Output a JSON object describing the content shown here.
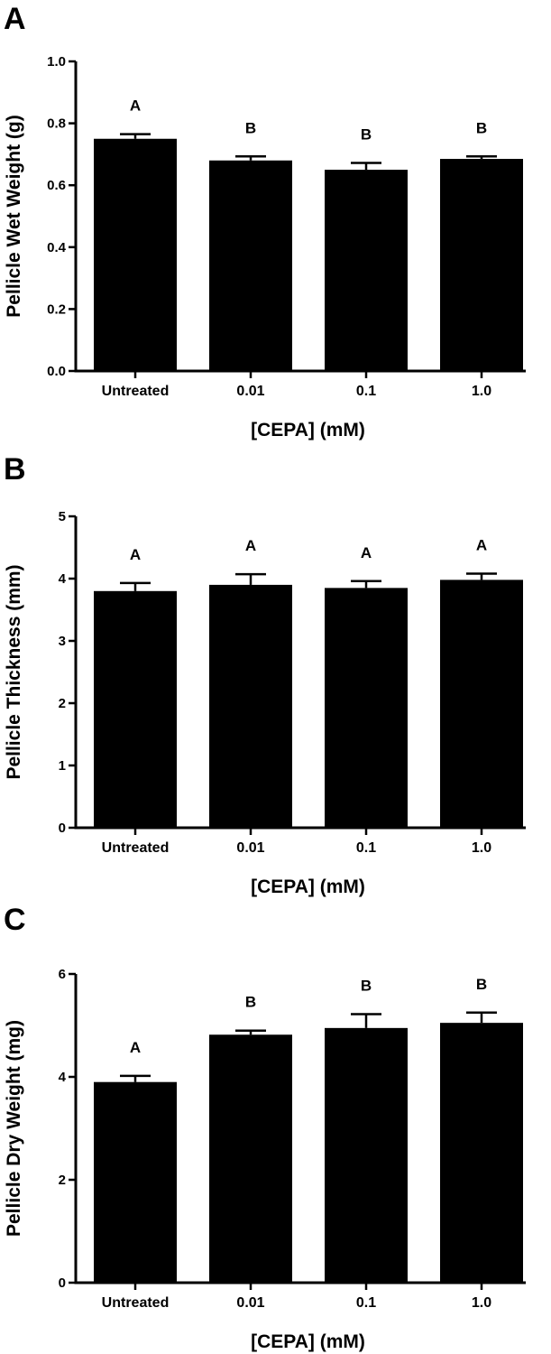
{
  "chart_data": [
    {
      "type": "bar",
      "panel": "A",
      "categories": [
        "Untreated",
        "0.01",
        "0.1",
        "1.0"
      ],
      "values": [
        0.75,
        0.68,
        0.65,
        0.685
      ],
      "errors": [
        0.015,
        0.013,
        0.022,
        0.008
      ],
      "significance": [
        "A",
        "B",
        "B",
        "B"
      ],
      "xlabel": "[CEPA] (mM)",
      "ylabel": "Pellicle Wet Weight (g)",
      "ylim": [
        0,
        1.0
      ],
      "yticks": [
        "0.0",
        "0.2",
        "0.4",
        "0.6",
        "0.8",
        "1.0"
      ],
      "bar_color": "#000000",
      "grid": false
    },
    {
      "type": "bar",
      "panel": "B",
      "categories": [
        "Untreated",
        "0.01",
        "0.1",
        "1.0"
      ],
      "values": [
        3.8,
        3.9,
        3.85,
        3.98
      ],
      "errors": [
        0.13,
        0.17,
        0.11,
        0.1
      ],
      "significance": [
        "A",
        "A",
        "A",
        "A"
      ],
      "xlabel": "[CEPA] (mM)",
      "ylabel": "Pellicle Thickness (mm)",
      "ylim": [
        0,
        5
      ],
      "yticks": [
        "0",
        "1",
        "2",
        "3",
        "4",
        "5"
      ],
      "bar_color": "#000000",
      "grid": false
    },
    {
      "type": "bar",
      "panel": "C",
      "categories": [
        "Untreated",
        "0.01",
        "0.1",
        "1.0"
      ],
      "values": [
        3.9,
        4.82,
        4.95,
        5.05
      ],
      "errors": [
        0.12,
        0.08,
        0.27,
        0.2
      ],
      "significance": [
        "A",
        "B",
        "B",
        "B"
      ],
      "xlabel": "[CEPA] (mM)",
      "ylabel": "Pellicle Dry Weight (mg)",
      "ylim": [
        0,
        6
      ],
      "yticks": [
        "0",
        "2",
        "4",
        "6"
      ],
      "bar_color": "#000000",
      "grid": false
    }
  ]
}
